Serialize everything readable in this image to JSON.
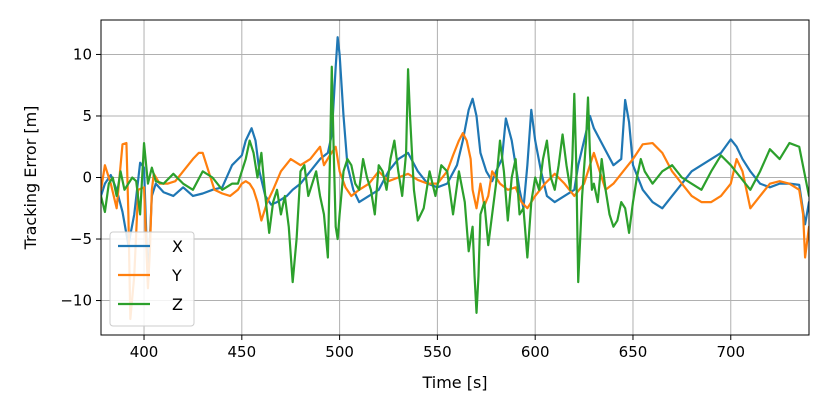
{
  "chart_data": {
    "type": "line",
    "title": "",
    "xlabel": "Time [s]",
    "ylabel": "Tracking Error [m]",
    "xlim": [
      378,
      740
    ],
    "ylim": [
      -12.8,
      12.8
    ],
    "xticks": [
      400,
      450,
      500,
      550,
      600,
      650,
      700
    ],
    "yticks": [
      -10,
      -5,
      0,
      5,
      10
    ],
    "grid": true,
    "legend_position": "lower-left",
    "series": [
      {
        "name": "X",
        "color": "#1f77b4",
        "x": [
          378,
          380,
          383,
          386,
          389,
          392,
          395,
          398,
          400,
          402,
          404,
          406,
          410,
          415,
          420,
          425,
          430,
          435,
          440,
          445,
          450,
          452,
          455,
          457,
          459,
          462,
          465,
          468,
          470,
          473,
          476,
          480,
          485,
          490,
          494,
          496,
          498,
          499,
          500,
          502,
          504,
          507,
          510,
          515,
          520,
          525,
          530,
          535,
          540,
          545,
          550,
          555,
          560,
          563,
          566,
          568,
          570,
          572,
          575,
          578,
          580,
          583,
          585,
          588,
          590,
          592,
          594,
          596,
          598,
          600,
          603,
          606,
          610,
          615,
          620,
          622,
          625,
          628,
          630,
          635,
          640,
          644,
          646,
          648,
          650,
          655,
          660,
          665,
          670,
          675,
          680,
          685,
          690,
          695,
          700,
          703,
          706,
          710,
          715,
          720,
          725,
          730,
          735,
          738,
          740
        ],
        "y": [
          -1.5,
          -0.5,
          0.2,
          -1.0,
          -2.8,
          -5.5,
          -3.0,
          1.2,
          0.8,
          -8.5,
          -1.5,
          -0.5,
          -1.2,
          -1.5,
          -0.8,
          -1.5,
          -1.3,
          -1.0,
          -0.8,
          1.0,
          1.8,
          3.0,
          4.0,
          3.0,
          0.5,
          -1.5,
          -2.2,
          -2.0,
          -1.8,
          -1.5,
          -1.0,
          -0.5,
          0.5,
          1.5,
          2.0,
          3.5,
          9.0,
          11.4,
          10.0,
          5.0,
          1.0,
          -1.0,
          -2.0,
          -1.5,
          -1.0,
          0.5,
          1.5,
          2.0,
          0.5,
          -0.5,
          -0.8,
          -0.5,
          1.0,
          3.0,
          5.5,
          6.4,
          5.0,
          2.0,
          0.5,
          -0.3,
          0.5,
          1.5,
          4.8,
          3.0,
          1.0,
          -1.0,
          -2.5,
          1.0,
          5.5,
          3.0,
          0.5,
          -1.5,
          -2.0,
          -1.5,
          -1.0,
          1.0,
          3.0,
          5.0,
          4.0,
          2.5,
          1.0,
          1.5,
          6.3,
          4.5,
          1.0,
          -1.0,
          -2.0,
          -2.5,
          -1.5,
          -0.5,
          0.5,
          1.0,
          1.5,
          2.0,
          3.1,
          2.5,
          1.5,
          0.5,
          -0.5,
          -0.8,
          -0.5,
          -0.5,
          -0.6,
          -3.8,
          -2.0
        ]
      },
      {
        "name": "Y",
        "color": "#ff7f0e",
        "x": [
          378,
          380,
          383,
          386,
          389,
          391,
          392,
          393,
          395,
          397,
          400,
          402,
          403,
          404,
          405,
          408,
          412,
          416,
          420,
          425,
          428,
          430,
          433,
          436,
          440,
          444,
          448,
          450,
          452,
          454,
          456,
          458,
          460,
          463,
          466,
          470,
          475,
          480,
          485,
          490,
          492,
          495,
          498,
          500,
          503,
          506,
          510,
          515,
          520,
          525,
          530,
          535,
          540,
          545,
          550,
          555,
          558,
          561,
          563,
          565,
          567,
          568,
          570,
          572,
          574,
          576,
          578,
          582,
          586,
          590,
          593,
          596,
          600,
          605,
          610,
          615,
          620,
          625,
          628,
          630,
          633,
          636,
          640,
          645,
          650,
          655,
          660,
          665,
          670,
          675,
          680,
          685,
          690,
          695,
          700,
          703,
          706,
          710,
          715,
          720,
          725,
          730,
          735,
          737,
          738,
          740
        ],
        "y": [
          -1.0,
          1.0,
          -0.5,
          -2.5,
          2.7,
          2.8,
          -3.0,
          -11.5,
          -8.0,
          -1.0,
          -0.8,
          -9.0,
          -6.0,
          -1.0,
          0.3,
          -0.5,
          -0.5,
          -0.3,
          0.5,
          1.5,
          2.0,
          2.0,
          0.5,
          -1.0,
          -1.3,
          -1.5,
          -1.0,
          -0.5,
          -0.3,
          -0.5,
          -1.0,
          -2.0,
          -3.5,
          -2.0,
          -1.0,
          0.5,
          1.5,
          1.0,
          1.5,
          2.5,
          1.0,
          1.8,
          2.5,
          0.5,
          -0.8,
          -1.5,
          -1.0,
          -0.5,
          0.5,
          -0.3,
          0.0,
          0.3,
          -0.2,
          -0.5,
          -0.5,
          0.5,
          1.8,
          3.0,
          3.6,
          3.0,
          1.5,
          -1.0,
          -2.5,
          -0.5,
          -2.3,
          -1.5,
          0.5,
          -0.5,
          -1.0,
          -0.8,
          -2.0,
          -2.5,
          -1.5,
          -0.5,
          0.3,
          -0.5,
          -1.5,
          -0.5,
          1.0,
          2.0,
          0.5,
          -1.0,
          -0.5,
          0.5,
          1.5,
          2.7,
          2.8,
          2.0,
          0.5,
          -0.5,
          -1.5,
          -2.0,
          -2.0,
          -1.5,
          -0.5,
          1.5,
          0.5,
          -2.5,
          -1.5,
          -0.5,
          -0.3,
          -0.5,
          -1.0,
          -3.0,
          -6.5,
          -4.0
        ]
      },
      {
        "name": "Z",
        "color": "#2ca02c",
        "x": [
          378,
          380,
          382,
          384,
          386,
          388,
          390,
          392,
          394,
          396,
          398,
          400,
          402,
          404,
          406,
          410,
          415,
          420,
          425,
          430,
          435,
          440,
          445,
          448,
          450,
          452,
          454,
          456,
          458,
          460,
          462,
          464,
          466,
          468,
          470,
          472,
          474,
          476,
          478,
          480,
          482,
          484,
          486,
          488,
          490,
          492,
          494,
          495,
          496,
          497,
          498,
          499,
          500,
          502,
          504,
          506,
          508,
          510,
          512,
          514,
          516,
          518,
          520,
          522,
          524,
          526,
          528,
          530,
          532,
          534,
          535,
          536,
          538,
          540,
          543,
          546,
          549,
          552,
          555,
          558,
          561,
          564,
          566,
          568,
          569,
          570,
          571,
          572,
          574,
          576,
          578,
          580,
          582,
          584,
          586,
          588,
          590,
          592,
          594,
          596,
          598,
          600,
          602,
          604,
          606,
          608,
          610,
          612,
          614,
          616,
          618,
          619,
          620,
          621,
          622,
          624,
          626,
          627,
          628,
          629,
          630,
          632,
          634,
          636,
          638,
          640,
          642,
          644,
          646,
          648,
          650,
          652,
          654,
          656,
          660,
          665,
          670,
          675,
          680,
          685,
          690,
          695,
          700,
          705,
          710,
          715,
          720,
          725,
          730,
          735,
          740
        ],
        "y": [
          -1.5,
          -2.8,
          -0.5,
          0.0,
          -1.5,
          0.5,
          -1.0,
          -0.5,
          0.0,
          -0.3,
          -3.0,
          2.8,
          -0.5,
          0.8,
          -0.3,
          -0.5,
          0.3,
          -0.5,
          -1.0,
          0.5,
          0.0,
          -1.0,
          -0.5,
          -0.5,
          0.5,
          1.5,
          3.0,
          2.0,
          0.0,
          2.0,
          -1.5,
          -4.5,
          -2.0,
          -1.0,
          -3.0,
          -1.5,
          -4.0,
          -8.5,
          -5.0,
          0.5,
          1.0,
          -1.5,
          -0.5,
          0.5,
          -1.5,
          -3.0,
          -6.5,
          1.0,
          9.0,
          2.0,
          -4.0,
          -5.0,
          -3.0,
          0.5,
          1.5,
          1.0,
          -0.5,
          -1.0,
          1.5,
          0.0,
          -1.0,
          -3.0,
          1.0,
          0.5,
          -1.0,
          1.5,
          3.0,
          0.5,
          -1.5,
          2.0,
          8.8,
          5.0,
          -1.0,
          -3.5,
          -2.5,
          0.5,
          -1.5,
          1.0,
          0.5,
          -3.0,
          0.5,
          -2.0,
          -6.0,
          -4.0,
          -8.0,
          -11.0,
          -8.0,
          -3.0,
          -2.0,
          -5.5,
          -3.0,
          -0.5,
          3.0,
          0.5,
          -3.5,
          0.0,
          1.5,
          -3.0,
          -2.5,
          -6.5,
          -2.0,
          0.0,
          -1.0,
          1.5,
          3.0,
          0.0,
          -1.0,
          1.0,
          3.5,
          1.0,
          -1.0,
          1.5,
          6.8,
          1.0,
          -8.5,
          -1.5,
          3.0,
          6.5,
          2.0,
          -1.0,
          -0.5,
          -2.0,
          1.5,
          -1.0,
          -3.0,
          -4.0,
          -3.5,
          -2.0,
          -2.5,
          -4.5,
          -2.0,
          0.0,
          1.5,
          0.5,
          -0.5,
          0.5,
          1.0,
          0.0,
          -0.5,
          -1.0,
          0.5,
          1.8,
          1.0,
          0.0,
          -1.0,
          0.5,
          2.3,
          1.5,
          2.8,
          2.5,
          -1.5
        ]
      }
    ]
  }
}
